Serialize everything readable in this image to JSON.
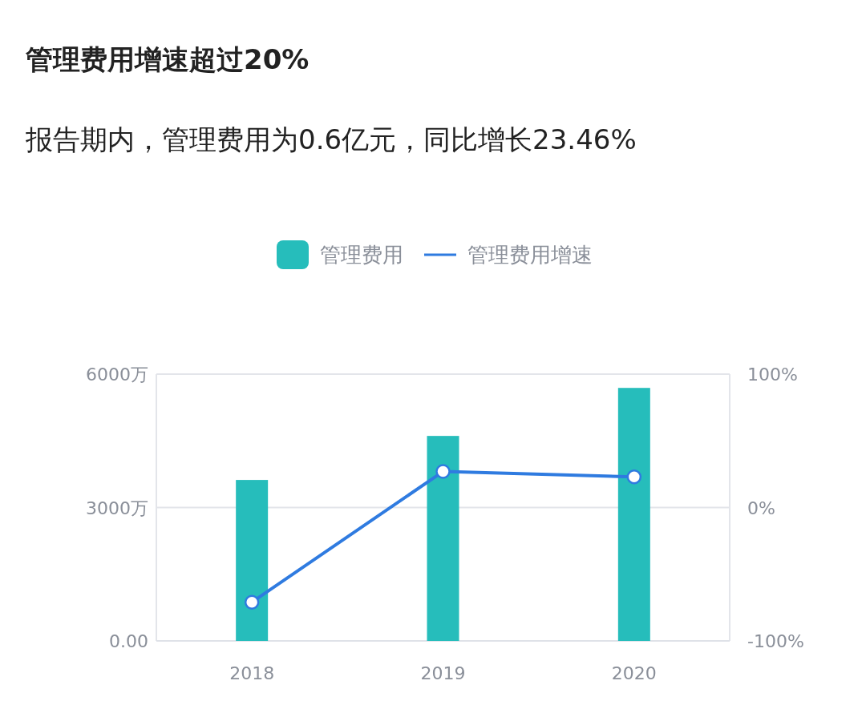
{
  "chart_data": {
    "type": "bar",
    "title": "管理费用增速超过20%",
    "subtitle": "报告期内，管理费用为0.6亿元，同比增长23.46%",
    "categories": [
      "2018",
      "2019",
      "2020"
    ],
    "series": [
      {
        "name": "管理费用",
        "color": "#26bdbb",
        "values": [
          3620,
          4610,
          5690
        ]
      },
      {
        "name": "管理费用增速",
        "type": "line",
        "axis": "y2",
        "color": "#2f7be0",
        "values": [
          -71,
          27,
          23
        ],
        "marker": "circle"
      }
    ],
    "ylim": [
      0,
      6000
    ],
    "yticks": [
      {
        "value": 0,
        "label": "0.00"
      },
      {
        "value": 3000,
        "label": "3000万"
      },
      {
        "value": 6000,
        "label": "6000万"
      }
    ],
    "y2lim": [
      -100,
      100
    ],
    "y2ticks": [
      {
        "value": -100,
        "label": "-100%"
      },
      {
        "value": 0,
        "label": "0%"
      },
      {
        "value": 100,
        "label": "100%"
      }
    ],
    "grid": "y",
    "legend": "top"
  }
}
